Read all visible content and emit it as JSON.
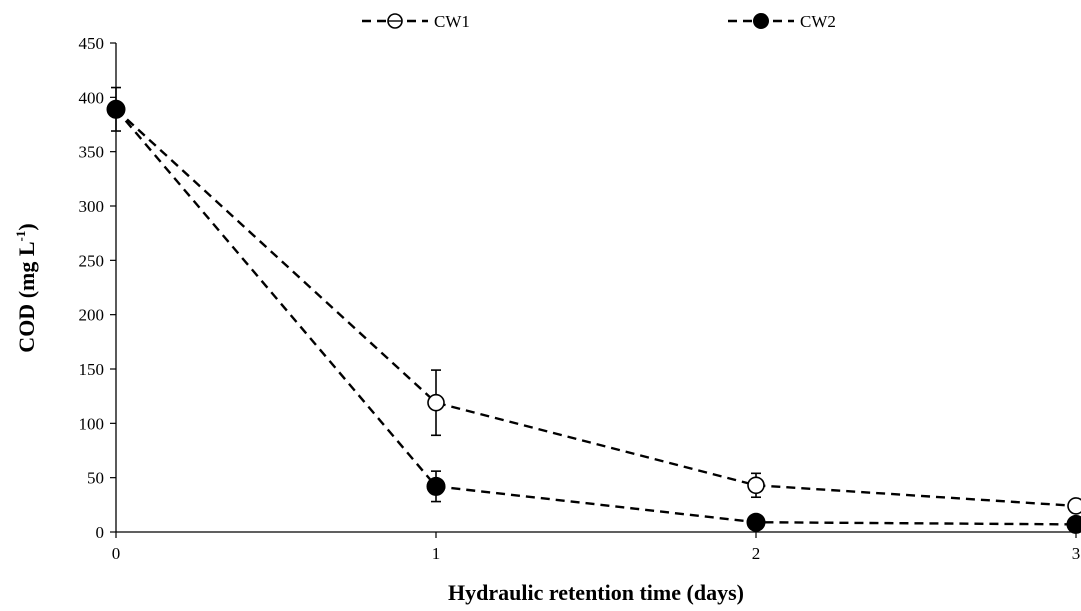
{
  "chart_data": {
    "type": "line",
    "x": [
      0,
      1,
      2,
      3
    ],
    "xlabel": "Hydraulic retention time (days)",
    "ylabel": "COD (mg L",
    "ylabel_superscript": "-1",
    "ylabel_suffix": ")",
    "xlim": [
      0,
      3
    ],
    "ylim": [
      0,
      450
    ],
    "xticks": [
      0,
      1,
      2,
      3
    ],
    "yticks": [
      0,
      50,
      100,
      150,
      200,
      250,
      300,
      350,
      400,
      450
    ],
    "grid": false,
    "legend_position": "top",
    "series": [
      {
        "name": "CW1",
        "marker": "open-circle",
        "line_style": "dashed",
        "color": "#000000",
        "values": [
          389,
          119,
          43,
          24
        ],
        "error": [
          20,
          30,
          11,
          0
        ]
      },
      {
        "name": "CW2",
        "marker": "filled-circle",
        "line_style": "dashed",
        "color": "#000000",
        "values": [
          389,
          42,
          9,
          7
        ],
        "error": [
          0,
          14,
          0,
          0
        ]
      }
    ]
  }
}
